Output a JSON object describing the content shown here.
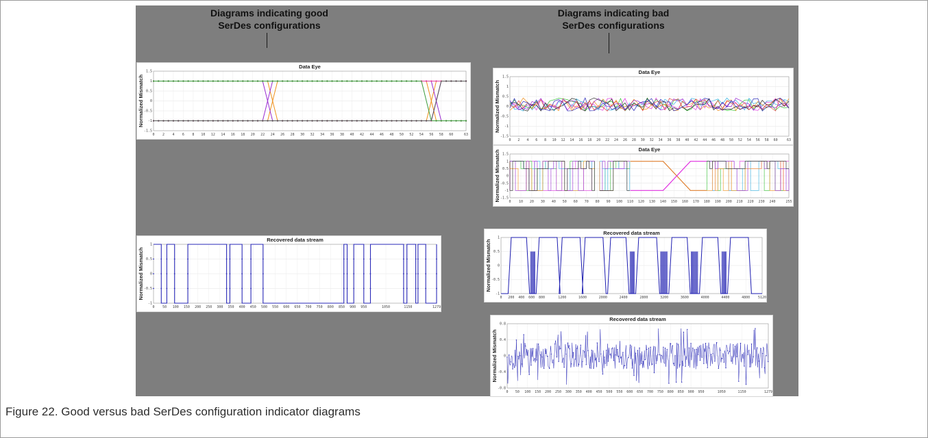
{
  "caption": "Figure 22. Good versus bad SerDes configuration indicator diagrams",
  "headings": {
    "good": [
      "Diagrams indicating good",
      "SerDes configurations"
    ],
    "bad": [
      "Diagrams indicating bad",
      "SerDes configurations"
    ]
  },
  "colors": {
    "background": "#7e7e7e",
    "stream_blue": "#2a2ab8",
    "orange": "#f0901a",
    "purple": "#9a2ad2",
    "pink": "#e0409a",
    "magenta": "#e030e0"
  },
  "chart_data": [
    {
      "id": "good-data-eye",
      "type": "line",
      "title": "Data Eye",
      "ylabel": "Normalized Mismatch",
      "ylim": [
        -1.5,
        1.5
      ],
      "yticks": [
        "1.5",
        "1",
        "0.5",
        "0",
        "-0.5",
        "-1",
        "-1.5"
      ],
      "xlim": [
        0,
        63
      ],
      "xticks": [
        "0",
        "2",
        "4",
        "6",
        "8",
        "10",
        "12",
        "14",
        "16",
        "18",
        "20",
        "22",
        "24",
        "26",
        "28",
        "30",
        "32",
        "34",
        "36",
        "38",
        "40",
        "42",
        "44",
        "46",
        "48",
        "50",
        "52",
        "54",
        "56",
        "58",
        "60",
        "63"
      ],
      "grid": true,
      "series": [
        {
          "color": "#f0901a",
          "level": 1,
          "transitions": [
            24,
            56
          ]
        },
        {
          "color": "#f0901a",
          "level": -1,
          "transitions": [
            24,
            56
          ]
        },
        {
          "color": "#9a2ad2",
          "level": -1,
          "transitions": [
            23,
            57
          ]
        },
        {
          "color": "#9a2ad2",
          "level": 1,
          "transitions": [
            23,
            57
          ]
        },
        {
          "color": "#e0409a",
          "level": 1,
          "transitions": []
        },
        {
          "color": "#e0409a",
          "level": -1,
          "transitions": []
        },
        {
          "color": "#3a9a3a",
          "level": 1,
          "transitions": [
            55
          ]
        },
        {
          "color": "#555555",
          "level": -1,
          "transitions": [
            57
          ]
        }
      ]
    },
    {
      "id": "good-recovered-stream",
      "type": "line",
      "title": "Recovered data stream",
      "ylabel": "Normalized Mismatch",
      "ylim": [
        -1,
        1
      ],
      "yticks": [
        "1",
        "0.5",
        "0",
        "-0.5",
        "-1"
      ],
      "xlim": [
        0,
        1279
      ],
      "xticks": [
        "0",
        "50",
        "100",
        "150",
        "200",
        "250",
        "300",
        "350",
        "400",
        "450",
        "500",
        "550",
        "600",
        "650",
        "700",
        "750",
        "800",
        "850",
        "900",
        "950",
        "1050",
        "1150",
        "1279"
      ],
      "grid": true,
      "color": "#2a2ab8",
      "segments": [
        [
          0,
          1
        ],
        [
          35,
          -1
        ],
        [
          60,
          1
        ],
        [
          95,
          -1
        ],
        [
          155,
          1
        ],
        [
          330,
          -1
        ],
        [
          345,
          1
        ],
        [
          400,
          -1
        ],
        [
          440,
          1
        ],
        [
          495,
          -1
        ],
        [
          860,
          1
        ],
        [
          875,
          -1
        ],
        [
          905,
          1
        ],
        [
          950,
          -1
        ],
        [
          980,
          1
        ],
        [
          1130,
          -1
        ],
        [
          1145,
          1
        ],
        [
          1185,
          -1
        ],
        [
          1195,
          1
        ],
        [
          1230,
          -1
        ],
        [
          1279,
          1
        ]
      ]
    },
    {
      "id": "bad-data-eye-noisy",
      "type": "line",
      "title": "Data Eye",
      "ylabel": "Normalized Mismatch",
      "ylim": [
        -1.5,
        1.5
      ],
      "yticks": [
        "1.5",
        "1",
        "0.5",
        "0",
        "-0.5",
        "-1",
        "-1.5"
      ],
      "xlim": [
        0,
        63
      ],
      "xticks": [
        "0",
        "2",
        "4",
        "6",
        "8",
        "10",
        "12",
        "14",
        "16",
        "18",
        "20",
        "22",
        "24",
        "26",
        "28",
        "30",
        "32",
        "34",
        "36",
        "38",
        "40",
        "42",
        "44",
        "46",
        "48",
        "50",
        "52",
        "54",
        "56",
        "58",
        "60",
        "63"
      ],
      "grid": true,
      "noise_amplitude": 0.55,
      "series_colors": [
        "#e030e0",
        "#30c030",
        "#30b0e0",
        "#f0901a",
        "#9a2ad2",
        "#222222",
        "#e04040",
        "#2a2ab8"
      ]
    },
    {
      "id": "bad-data-eye-wide",
      "type": "line",
      "title": "Data Eye",
      "ylabel": "Normalized Mismatch",
      "ylim": [
        -1.5,
        1.5
      ],
      "yticks": [
        "1.5",
        "1",
        "0.5",
        "0",
        "-0.5",
        "-1",
        "-1.5"
      ],
      "xlim": [
        0,
        255
      ],
      "xticks": [
        "0",
        "10",
        "20",
        "30",
        "40",
        "50",
        "60",
        "70",
        "80",
        "90",
        "100",
        "110",
        "120",
        "130",
        "140",
        "150",
        "160",
        "170",
        "180",
        "190",
        "200",
        "210",
        "220",
        "230",
        "240",
        "255"
      ],
      "grid": true,
      "noisy_ranges": [
        [
          0,
          78
        ],
        [
          82,
          110
        ],
        [
          180,
          255
        ]
      ],
      "crossover": [
        140,
        165
      ],
      "series_colors": [
        "#e030e0",
        "#30c030",
        "#30b0e0",
        "#f0901a",
        "#9a2ad2",
        "#222222"
      ]
    },
    {
      "id": "bad-recovered-stream-bursts",
      "type": "line",
      "title": "Recovered data stream",
      "ylabel": "Normalized Mismatch",
      "ylim": [
        -1,
        1
      ],
      "yticks": [
        "1",
        "0.5",
        "0",
        "-0.5",
        "-1"
      ],
      "xlim": [
        0,
        5120
      ],
      "xticks": [
        "0",
        "200",
        "400",
        "600",
        "800",
        "1200",
        "1600",
        "2000",
        "2400",
        "2800",
        "3200",
        "3600",
        "4000",
        "4400",
        "4800",
        "5120"
      ],
      "grid": true,
      "color": "#1c1cb0",
      "pulses": [
        [
          200,
          500
        ],
        [
          750,
          1100
        ],
        [
          1200,
          1550
        ],
        [
          1650,
          2000
        ],
        [
          2150,
          2450
        ],
        [
          2700,
          3050
        ],
        [
          3350,
          3650
        ],
        [
          3950,
          4250
        ],
        [
          4500,
          4850
        ]
      ]
    },
    {
      "id": "bad-recovered-stream-noisy",
      "type": "line",
      "title": "Recovered data stream",
      "ylabel": "Normalized Mismatch",
      "ylim": [
        -0.8,
        0.8
      ],
      "yticks": [
        "0.8",
        "0.4",
        "0",
        "-0.4",
        "-0.8"
      ],
      "xlim": [
        0,
        1279
      ],
      "xticks": [
        "0",
        "50",
        "100",
        "150",
        "200",
        "250",
        "300",
        "350",
        "400",
        "450",
        "500",
        "550",
        "600",
        "650",
        "700",
        "750",
        "800",
        "850",
        "900",
        "950",
        "1050",
        "1150",
        "1279"
      ],
      "grid": true,
      "color": "#2a2ab8",
      "noise_amplitude": 0.55
    }
  ]
}
